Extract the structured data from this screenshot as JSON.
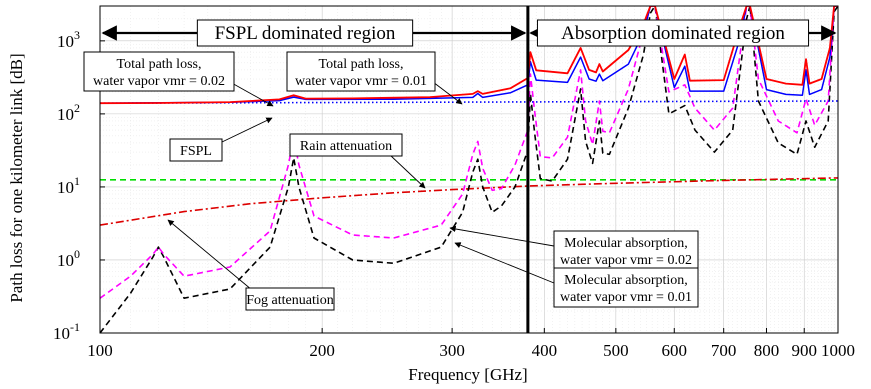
{
  "chart_data": {
    "type": "line",
    "xlabel": "Frequency [GHz]",
    "ylabel": "Path loss for one kilometer link [dB]",
    "xscale": "log",
    "yscale": "log",
    "xlim": [
      100,
      1000
    ],
    "ylim": [
      0.1,
      3000
    ],
    "grid": true,
    "x_ticks": [
      100,
      200,
      300,
      400,
      500,
      600,
      700,
      800,
      900,
      1000
    ],
    "x_tick_labels": [
      "100",
      "200",
      "300",
      "400",
      "500",
      "600",
      "700",
      "800",
      "900",
      "1000"
    ],
    "y_ticks": [
      {
        "value": 0.1,
        "base": "10",
        "exp": "-1"
      },
      {
        "value": 1,
        "base": "10",
        "exp": "0"
      },
      {
        "value": 10,
        "base": "10",
        "exp": "1"
      },
      {
        "value": 100,
        "base": "10",
        "exp": "2"
      },
      {
        "value": 1000,
        "base": "10",
        "exp": "3"
      }
    ],
    "boundary_x": 380,
    "regions": {
      "left": "FSPL dominated region",
      "right": "Absorption dominated region"
    },
    "series": [
      {
        "key": "total_002",
        "color": "#ff0000",
        "style": "solid",
        "width": 1.8,
        "x": [
          100,
          120,
          150,
          175,
          183,
          190,
          220,
          280,
          320,
          325,
          330,
          360,
          380,
          383,
          390,
          430,
          448,
          460,
          470,
          475,
          480,
          520,
          545,
          557,
          565,
          600,
          620,
          630,
          700,
          735,
          752,
          760,
          800,
          850,
          895,
          905,
          915,
          950,
          975,
          988,
          1000
        ],
        "y": [
          140,
          141,
          145,
          158,
          180,
          162,
          163,
          170,
          188,
          205,
          188,
          225,
          310,
          700,
          395,
          360,
          800,
          400,
          370,
          480,
          380,
          750,
          1700,
          3000,
          3000,
          300,
          650,
          285,
          290,
          1500,
          3000,
          3000,
          300,
          260,
          250,
          560,
          260,
          300,
          800,
          3000,
          3000
        ]
      },
      {
        "key": "total_001",
        "color": "#0000ff",
        "style": "solid",
        "width": 1.5,
        "x": [
          100,
          150,
          175,
          183,
          190,
          250,
          320,
          325,
          330,
          360,
          380,
          383,
          390,
          430,
          448,
          460,
          470,
          475,
          480,
          520,
          545,
          557,
          565,
          600,
          620,
          630,
          700,
          735,
          752,
          760,
          800,
          850,
          895,
          905,
          915,
          950,
          975,
          988,
          1000
        ],
        "y": [
          140,
          144,
          152,
          170,
          158,
          159,
          168,
          190,
          168,
          195,
          250,
          520,
          290,
          270,
          600,
          300,
          280,
          350,
          285,
          480,
          1300,
          3000,
          3000,
          230,
          450,
          205,
          205,
          1000,
          3000,
          3000,
          215,
          185,
          180,
          400,
          185,
          215,
          600,
          3000,
          3000
        ]
      },
      {
        "key": "fspl",
        "color": "#0000ff",
        "style": "dotted",
        "width": 1.6,
        "x": [
          100,
          1000
        ],
        "y": [
          140,
          150
        ]
      },
      {
        "key": "rain",
        "color": "#00dd00",
        "style": "dashed",
        "width": 1.6,
        "x": [
          100,
          1000
        ],
        "y": [
          12.5,
          12.5
        ]
      },
      {
        "key": "fog",
        "color": "#dd0000",
        "style": "dashdot",
        "width": 1.6,
        "x": [
          100,
          130,
          160,
          200,
          250,
          300,
          380,
          500,
          700,
          1000
        ],
        "y": [
          3.0,
          4.6,
          5.9,
          7.1,
          8.3,
          9.2,
          10.3,
          11.2,
          12.3,
          13.3
        ]
      },
      {
        "key": "mol_002",
        "color": "#ff00ff",
        "style": "dashed",
        "width": 1.6,
        "x": [
          100,
          110,
          118,
          120,
          122,
          130,
          150,
          170,
          180,
          183,
          186,
          195,
          220,
          250,
          290,
          310,
          320,
          325,
          330,
          340,
          350,
          365,
          380,
          383,
          388,
          395,
          410,
          430,
          448,
          455,
          465,
          475,
          480,
          490,
          520,
          545,
          557,
          565,
          590,
          620,
          640,
          680,
          720,
          752,
          760,
          780,
          830,
          880,
          905,
          930,
          970,
          988,
          1000
        ],
        "y": [
          0.3,
          0.6,
          1.2,
          1.5,
          1.2,
          0.6,
          0.8,
          2.5,
          20,
          48,
          20,
          4.0,
          2.2,
          2.0,
          3.0,
          8.0,
          28,
          42,
          18,
          9.0,
          9.5,
          20,
          60,
          350,
          110,
          26,
          25,
          48,
          400,
          80,
          38,
          150,
          58,
          55,
          220,
          1300,
          3000,
          3000,
          200,
          250,
          120,
          60,
          120,
          3000,
          3000,
          300,
          80,
          55,
          160,
          70,
          150,
          3000,
          3000
        ]
      },
      {
        "key": "mol_001",
        "color": "#000000",
        "style": "dashed",
        "width": 1.6,
        "x": [
          100,
          110,
          118,
          120,
          122,
          130,
          150,
          170,
          180,
          183,
          186,
          195,
          220,
          250,
          290,
          310,
          320,
          325,
          330,
          340,
          350,
          365,
          380,
          383,
          388,
          395,
          410,
          430,
          448,
          455,
          465,
          475,
          480,
          490,
          520,
          545,
          557,
          565,
          590,
          620,
          640,
          680,
          720,
          752,
          760,
          780,
          830,
          880,
          905,
          930,
          970,
          988,
          1000
        ],
        "y": [
          0.1,
          0.35,
          1.1,
          1.5,
          1.1,
          0.3,
          0.4,
          1.5,
          10,
          25,
          10,
          2.0,
          1.0,
          0.9,
          1.5,
          4.5,
          16,
          24,
          10,
          4.5,
          5.5,
          10,
          32,
          190,
          55,
          13,
          12,
          24,
          220,
          42,
          21,
          80,
          29,
          28,
          120,
          650,
          2400,
          3000,
          100,
          130,
          60,
          30,
          60,
          2000,
          3000,
          150,
          40,
          28,
          80,
          35,
          80,
          2500,
          3000
        ]
      }
    ],
    "annotations": [
      {
        "key": "total_002_label",
        "lines": [
          "Total path loss,",
          "water vapor vmr = 0.02"
        ]
      },
      {
        "key": "total_001_label",
        "lines": [
          "Total path loss,",
          "water vapor vmr = 0.01"
        ]
      },
      {
        "key": "fspl_label",
        "lines": [
          "FSPL"
        ]
      },
      {
        "key": "rain_label",
        "lines": [
          "Rain attenuation"
        ]
      },
      {
        "key": "fog_label",
        "lines": [
          "Fog attenuation"
        ]
      },
      {
        "key": "mol_002_label",
        "lines": [
          "Molecular absorption,",
          "water vapor vmr = 0.02"
        ]
      },
      {
        "key": "mol_001_label",
        "lines": [
          "Molecular absorption,",
          "water vapor vmr = 0.01"
        ]
      }
    ]
  }
}
